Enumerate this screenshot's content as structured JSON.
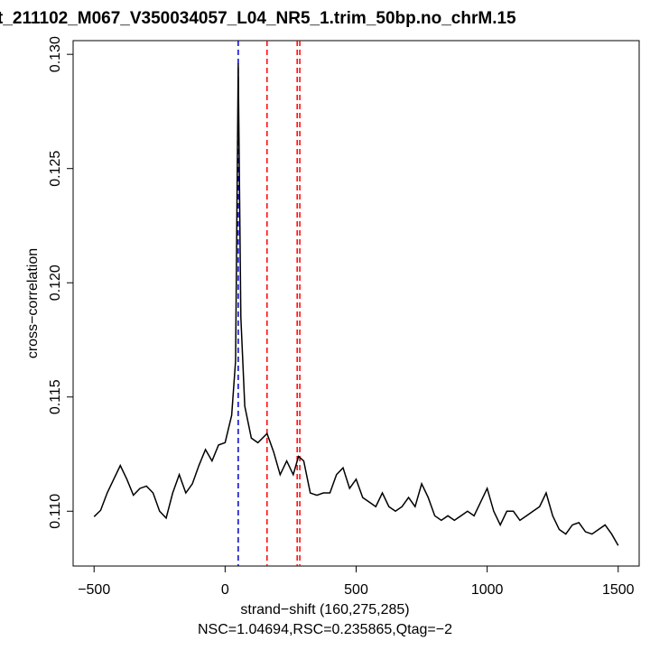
{
  "chart_data": {
    "type": "line",
    "title": "t_211102_M067_V350034057_L04_NR5_1.trim_50bp.no_chrM.15",
    "x_label": "strand−shift (160,275,285)",
    "subtitle": "NSC=1.04694,RSC=0.235865,Qtag=−2",
    "y_label": "cross−correlation",
    "color": "#000000",
    "x": [
      -500,
      -475,
      -450,
      -425,
      -400,
      -375,
      -350,
      -325,
      -300,
      -275,
      -250,
      -225,
      -200,
      -175,
      -150,
      -125,
      -100,
      -75,
      -50,
      -25,
      0,
      25,
      40,
      50,
      60,
      75,
      100,
      125,
      160,
      185,
      210,
      235,
      260,
      280,
      300,
      325,
      350,
      375,
      400,
      425,
      450,
      475,
      500,
      525,
      550,
      575,
      600,
      625,
      650,
      675,
      700,
      725,
      750,
      775,
      800,
      825,
      850,
      875,
      900,
      925,
      950,
      975,
      1000,
      1025,
      1050,
      1075,
      1100,
      1125,
      1150,
      1175,
      1200,
      1225,
      1250,
      1275,
      1300,
      1325,
      1350,
      1375,
      1400,
      1425,
      1450,
      1475,
      1500
    ],
    "values": [
      0.10976,
      0.11004,
      0.1108,
      0.1114,
      0.112,
      0.1114,
      0.1107,
      0.111,
      0.1111,
      0.1108,
      0.11,
      0.1097,
      0.1108,
      0.1116,
      0.1108,
      0.1112,
      0.112,
      0.1127,
      0.1122,
      0.1129,
      0.113,
      0.1142,
      0.1166,
      0.1296,
      0.1185,
      0.1146,
      0.1132,
      0.113,
      0.1134,
      0.1126,
      0.1116,
      0.1122,
      0.1116,
      0.1124,
      0.1122,
      0.1108,
      0.1107,
      0.1108,
      0.1108,
      0.1116,
      0.1119,
      0.111,
      0.1114,
      0.1106,
      0.1104,
      0.1102,
      0.1108,
      0.1102,
      0.11,
      0.1102,
      0.1106,
      0.1102,
      0.1112,
      0.1106,
      0.1098,
      0.1096,
      0.1098,
      0.1096,
      0.1098,
      0.11,
      0.1098,
      0.1104,
      0.111,
      0.11,
      0.1094,
      0.11,
      0.11,
      0.1096,
      0.1098,
      0.11,
      0.1102,
      0.1108,
      0.1098,
      0.1092,
      0.109,
      0.1094,
      0.1095,
      0.1091,
      0.109,
      0.1092,
      0.1094,
      0.109,
      0.1085
    ],
    "vlines": [
      {
        "value": 50,
        "color": "#0000cd"
      },
      {
        "value": 160,
        "color": "#ff0000"
      },
      {
        "value": 275,
        "color": "#ff0000"
      },
      {
        "value": 285,
        "color": "#ff0000"
      }
    ],
    "xlim": [
      -580,
      1580
    ],
    "ylim": [
      0.1076,
      0.1306
    ],
    "xticks": [
      {
        "value": -500,
        "label": "−500"
      },
      0,
      500,
      1000,
      1500
    ],
    "yticks": [
      {
        "value": 0.11,
        "label": "0.110"
      },
      0.115,
      {
        "value": 0.12,
        "label": "0.120"
      },
      0.125,
      {
        "value": 0.13,
        "label": "0.130"
      }
    ]
  }
}
